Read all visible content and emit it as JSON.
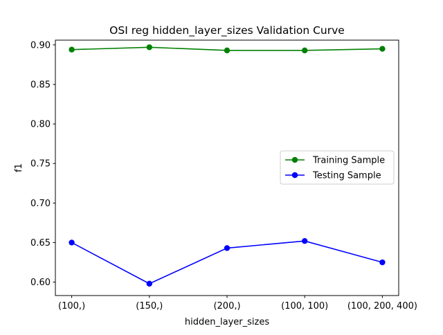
{
  "chart_data": {
    "type": "line",
    "title": "OSI reg hidden_layer_sizes Validation Curve",
    "xlabel": "hidden_layer_sizes",
    "ylabel": "f1",
    "categories": [
      "(100,)",
      "(150,)",
      "(200,)",
      "(100, 100)",
      "(100, 200, 400)"
    ],
    "ylim": [
      0.583,
      0.906
    ],
    "yticks": [
      0.6,
      0.65,
      0.7,
      0.75,
      0.8,
      0.85,
      0.9
    ],
    "ytick_labels": [
      "0.60",
      "0.65",
      "0.70",
      "0.75",
      "0.80",
      "0.85",
      "0.90"
    ],
    "grid": false,
    "legend_position": "center-right",
    "series": [
      {
        "name": "Training Sample",
        "color": "#008000",
        "marker": "circle",
        "values": [
          0.894,
          0.897,
          0.893,
          0.893,
          0.895
        ]
      },
      {
        "name": "Testing Sample",
        "color": "#0000ff",
        "marker": "circle",
        "values": [
          0.65,
          0.598,
          0.643,
          0.652,
          0.625
        ]
      }
    ]
  }
}
